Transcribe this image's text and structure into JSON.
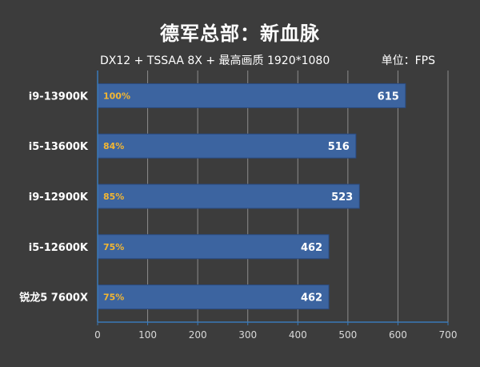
{
  "chart_data": {
    "type": "bar",
    "orientation": "horizontal",
    "title": "德军总部：新血脉",
    "subtitle": "DX12 + TSSAA 8X + 最高画质 1920*1080",
    "unit_label": "单位：FPS",
    "categories": [
      "i9-13900K",
      "i5-13600K",
      "i9-12900K",
      "i5-12600K",
      "锐龙5 7600X"
    ],
    "values": [
      615,
      516,
      523,
      462,
      462
    ],
    "percent_labels": [
      "100%",
      "84%",
      "85%",
      "75%",
      "75%"
    ],
    "xlim": [
      0,
      700
    ],
    "xticks": [
      0,
      100,
      200,
      300,
      400,
      500,
      600,
      700
    ],
    "grid": true,
    "legend": "none",
    "colors": {
      "background": "#3c3c3c",
      "bar": "#3c64a0",
      "bar_border": "#2a4a80",
      "grid": "#8c8c8c",
      "axis": "#3a7ab8",
      "text": "#ffffff",
      "percent": "#f2b632",
      "tick": "#d9d9d9"
    }
  }
}
